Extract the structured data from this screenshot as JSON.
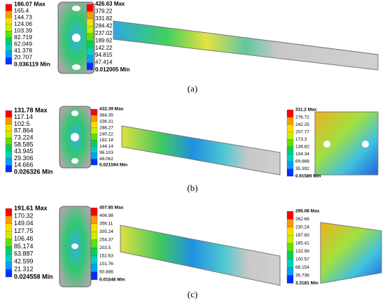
{
  "panels": [
    {
      "caption": "(a)",
      "legends": [
        [
          "186.07 Max",
          "165.4",
          "144.73",
          "124.06",
          "103.39",
          "82.719",
          "62.049",
          "41.378",
          "20.707",
          "0.036119 Min"
        ],
        [
          "426.63 Max",
          "379.22",
          "331.82",
          "284.42",
          "237.02",
          "189.62",
          "142.22",
          "94.815",
          "47.414",
          "0.012005 Min"
        ]
      ]
    },
    {
      "caption": "(b)",
      "legends": [
        [
          "131.78 Max",
          "117.14",
          "102.5",
          "87.864",
          "73.224",
          "58.585",
          "43.945",
          "29.306",
          "14.666",
          "0.026326 Min"
        ],
        [
          "432.39 Max",
          "384.35",
          "336.31",
          "288.27",
          "240.22",
          "192.18",
          "144.14",
          "96.103",
          "48.062",
          "0.021594 Min"
        ],
        [
          "311.2 Max",
          "276.72",
          "242.25",
          "207.77",
          "173.3",
          "138.82",
          "104.34",
          "69.868",
          "35.392",
          "0.91589 Min"
        ]
      ]
    },
    {
      "caption": "(c)",
      "legends": [
        [
          "191.61 Max",
          "170.32",
          "149.04",
          "127.75",
          "106.46",
          "85.174",
          "63.887",
          "42.599",
          "21.312",
          "0.024558 Min"
        ],
        [
          "457.85 Max",
          "406.98",
          "356.11",
          "305.24",
          "254.37",
          "203.5",
          "152.63",
          "101.76",
          "50.886",
          "0.01546 Min"
        ],
        [
          "295.08 Max",
          "262.66",
          "230.24",
          "197.83",
          "165.41",
          "132.99",
          "100.57",
          "68.154",
          "35.736",
          "3.3181 Min"
        ]
      ]
    }
  ]
}
